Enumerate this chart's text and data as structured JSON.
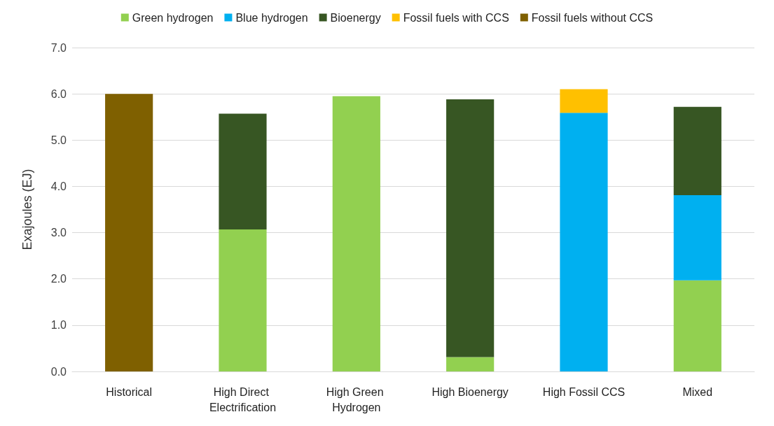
{
  "chart_data": {
    "type": "bar",
    "stacked": true,
    "ylabel": "Exajoules (EJ)",
    "categories": [
      "Historical",
      "High Direct Electrification",
      "High Green Hydrogen",
      "High Bioenergy",
      "High Fossil CCS",
      "Mixed"
    ],
    "series": [
      {
        "name": "Green hydrogen",
        "color": "#92d050",
        "values": [
          null,
          3.07,
          5.95,
          0.31,
          null,
          1.97
        ]
      },
      {
        "name": "Blue hydrogen",
        "color": "#00b0f0",
        "values": [
          null,
          null,
          null,
          null,
          5.59,
          1.84
        ]
      },
      {
        "name": "Bioenergy",
        "color": "#375623",
        "values": [
          null,
          2.5,
          null,
          5.57,
          null,
          1.91
        ]
      },
      {
        "name": "Fossil fuels with CCS",
        "color": "#ffc000",
        "values": [
          null,
          null,
          null,
          null,
          0.51,
          null
        ]
      },
      {
        "name": "Fossil fuels without CCS",
        "color": "#7f6000",
        "values": [
          6.0,
          null,
          null,
          null,
          null,
          null
        ]
      }
    ],
    "ylim": [
      0,
      7
    ],
    "yticks": [
      {
        "value": 0,
        "label": "0.0"
      },
      {
        "value": 1,
        "label": "1.0"
      },
      {
        "value": 2,
        "label": "2.0"
      },
      {
        "value": 3,
        "label": "3.0"
      },
      {
        "value": 4,
        "label": "4.0"
      },
      {
        "value": 5,
        "label": "5.0"
      },
      {
        "value": 6,
        "label": "6.0"
      },
      {
        "value": 7,
        "label": "7.0"
      }
    ],
    "grid": "y",
    "legend": "top"
  }
}
